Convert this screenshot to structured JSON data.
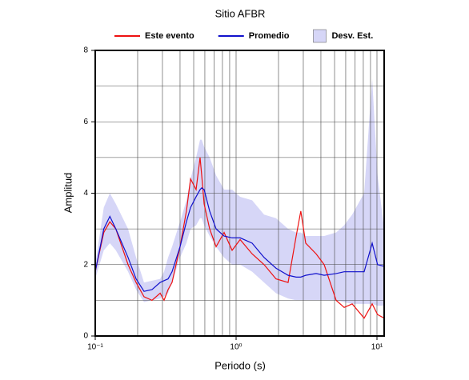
{
  "chart_data": {
    "type": "line",
    "title": "Sitio AFBR",
    "xlabel": "Periodo (s)",
    "ylabel": "Amplitud",
    "log_x": true,
    "xlim": [
      0.1,
      11.25
    ],
    "ylim": [
      0,
      8
    ],
    "xticks": [
      {
        "value": 0.1,
        "label": "10⁻¹"
      },
      {
        "value": 1,
        "label": "10⁰"
      },
      {
        "value": 10,
        "label": "10¹"
      }
    ],
    "xminor": [
      0.2,
      0.3,
      0.4,
      0.5,
      0.6,
      0.7,
      0.8,
      0.9,
      2,
      3,
      4,
      5,
      6,
      7,
      8,
      9
    ],
    "yticks": [
      0,
      2,
      4,
      6,
      8
    ],
    "yminor": [
      1,
      3,
      5,
      7
    ],
    "grid": true,
    "legend": "top",
    "x": [
      0.1,
      0.115,
      0.127,
      0.14,
      0.171,
      0.195,
      0.222,
      0.253,
      0.289,
      0.308,
      0.329,
      0.351,
      0.4,
      0.444,
      0.475,
      0.52,
      0.555,
      0.57,
      0.593,
      0.649,
      0.721,
      0.822,
      0.937,
      1.068,
      1.3,
      1.58,
      1.92,
      2.34,
      2.67,
      2.88,
      3.12,
      3.7,
      4.22,
      5.13,
      5.85,
      6.67,
      8.11,
      9.25,
      10.1,
      11.25
    ],
    "band": {
      "name": "Desv. Est.",
      "color": "#d6d6f7",
      "upper": [
        2.0,
        3.6,
        4.0,
        3.7,
        3.0,
        2.2,
        1.5,
        1.55,
        1.6,
        1.8,
        2.2,
        2.5,
        3.2,
        3.8,
        4.4,
        5.0,
        5.5,
        5.5,
        5.3,
        5.0,
        4.5,
        4.1,
        4.1,
        3.9,
        3.8,
        3.4,
        3.3,
        3.0,
        2.9,
        2.9,
        2.8,
        2.8,
        2.8,
        2.9,
        3.1,
        3.4,
        4.0,
        7.2,
        4.5,
        3.0
      ],
      "lower": [
        1.6,
        2.4,
        2.6,
        2.4,
        1.8,
        1.3,
        0.95,
        1.0,
        1.05,
        1.1,
        1.2,
        1.5,
        2.2,
        2.6,
        3.0,
        3.1,
        3.3,
        3.3,
        3.1,
        2.8,
        2.5,
        2.2,
        2.0,
        2.0,
        1.8,
        1.5,
        1.2,
        1.05,
        1.0,
        1.0,
        1.0,
        1.0,
        1.0,
        1.0,
        0.95,
        0.9,
        0.9,
        0.9,
        0.85,
        0.85
      ]
    },
    "series": [
      {
        "name": "Este evento",
        "color": "#ee1111",
        "values": [
          1.8,
          2.9,
          3.2,
          3.0,
          2.0,
          1.5,
          1.1,
          1.0,
          1.2,
          1.0,
          1.3,
          1.5,
          2.5,
          3.5,
          4.4,
          4.1,
          5.0,
          4.5,
          3.7,
          3.0,
          2.5,
          2.9,
          2.4,
          2.7,
          2.3,
          2.0,
          1.6,
          1.5,
          2.8,
          3.5,
          2.6,
          2.3,
          2.0,
          1.0,
          0.8,
          0.9,
          0.5,
          0.9,
          0.6,
          0.5
        ]
      },
      {
        "name": "Promedio",
        "color": "#1111cc",
        "values": [
          1.8,
          3.0,
          3.35,
          3.0,
          2.2,
          1.6,
          1.25,
          1.3,
          1.5,
          1.55,
          1.6,
          1.8,
          2.5,
          3.2,
          3.6,
          3.9,
          4.1,
          4.15,
          4.1,
          3.5,
          3.0,
          2.8,
          2.75,
          2.75,
          2.6,
          2.2,
          1.9,
          1.7,
          1.65,
          1.65,
          1.7,
          1.75,
          1.7,
          1.75,
          1.8,
          1.8,
          1.8,
          2.6,
          2.0,
          1.95
        ]
      }
    ]
  }
}
